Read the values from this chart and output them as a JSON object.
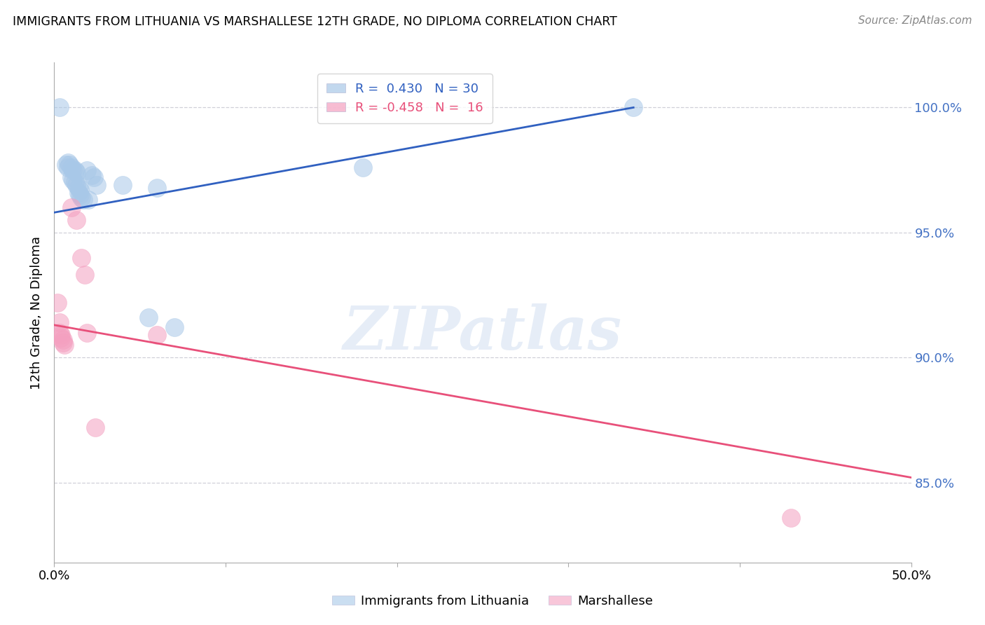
{
  "title": "IMMIGRANTS FROM LITHUANIA VS MARSHALLESE 12TH GRADE, NO DIPLOMA CORRELATION CHART",
  "source": "Source: ZipAtlas.com",
  "ylabel": "12th Grade, No Diploma",
  "xmin": 0.0,
  "xmax": 0.5,
  "ymin": 0.818,
  "ymax": 1.018,
  "yticks": [
    0.85,
    0.9,
    0.95,
    1.0
  ],
  "ytick_labels": [
    "85.0%",
    "90.0%",
    "95.0%",
    "100.0%"
  ],
  "legend_blue_r": "R =  0.430",
  "legend_blue_n": "N = 30",
  "legend_pink_r": "R = -0.458",
  "legend_pink_n": "N =  16",
  "legend_blue_label": "Immigrants from Lithuania",
  "legend_pink_label": "Marshallese",
  "blue_color": "#a8c8e8",
  "pink_color": "#f4a0c0",
  "blue_line_color": "#3060c0",
  "pink_line_color": "#e8507a",
  "blue_scatter": [
    [
      0.003,
      1.0
    ],
    [
      0.008,
      0.978
    ],
    [
      0.009,
      0.977
    ],
    [
      0.01,
      0.976
    ],
    [
      0.011,
      0.975
    ],
    [
      0.012,
      0.975
    ],
    [
      0.013,
      0.974
    ],
    [
      0.01,
      0.972
    ],
    [
      0.011,
      0.971
    ],
    [
      0.012,
      0.97
    ],
    [
      0.013,
      0.969
    ],
    [
      0.014,
      0.968
    ],
    [
      0.015,
      0.967
    ],
    [
      0.014,
      0.966
    ],
    [
      0.015,
      0.965
    ],
    [
      0.016,
      0.964
    ],
    [
      0.017,
      0.963
    ],
    [
      0.007,
      0.977
    ],
    [
      0.008,
      0.976
    ],
    [
      0.019,
      0.975
    ],
    [
      0.022,
      0.973
    ],
    [
      0.023,
      0.972
    ],
    [
      0.02,
      0.963
    ],
    [
      0.025,
      0.969
    ],
    [
      0.04,
      0.969
    ],
    [
      0.06,
      0.968
    ],
    [
      0.055,
      0.916
    ],
    [
      0.07,
      0.912
    ],
    [
      0.18,
      0.976
    ],
    [
      0.338,
      1.0
    ]
  ],
  "pink_scatter": [
    [
      0.002,
      0.922
    ],
    [
      0.003,
      0.914
    ],
    [
      0.003,
      0.91
    ],
    [
      0.004,
      0.909
    ],
    [
      0.004,
      0.908
    ],
    [
      0.005,
      0.907
    ],
    [
      0.005,
      0.906
    ],
    [
      0.006,
      0.905
    ],
    [
      0.01,
      0.96
    ],
    [
      0.013,
      0.955
    ],
    [
      0.016,
      0.94
    ],
    [
      0.018,
      0.933
    ],
    [
      0.019,
      0.91
    ],
    [
      0.024,
      0.872
    ],
    [
      0.06,
      0.909
    ],
    [
      0.43,
      0.836
    ]
  ],
  "blue_trendline_x": [
    0.0,
    0.338
  ],
  "blue_trendline_y": [
    0.958,
    1.0
  ],
  "pink_trendline_x": [
    0.0,
    0.5
  ],
  "pink_trendline_y": [
    0.913,
    0.852
  ],
  "watermark": "ZIPatlas",
  "background_color": "#ffffff",
  "grid_color": "#d0d0d8"
}
